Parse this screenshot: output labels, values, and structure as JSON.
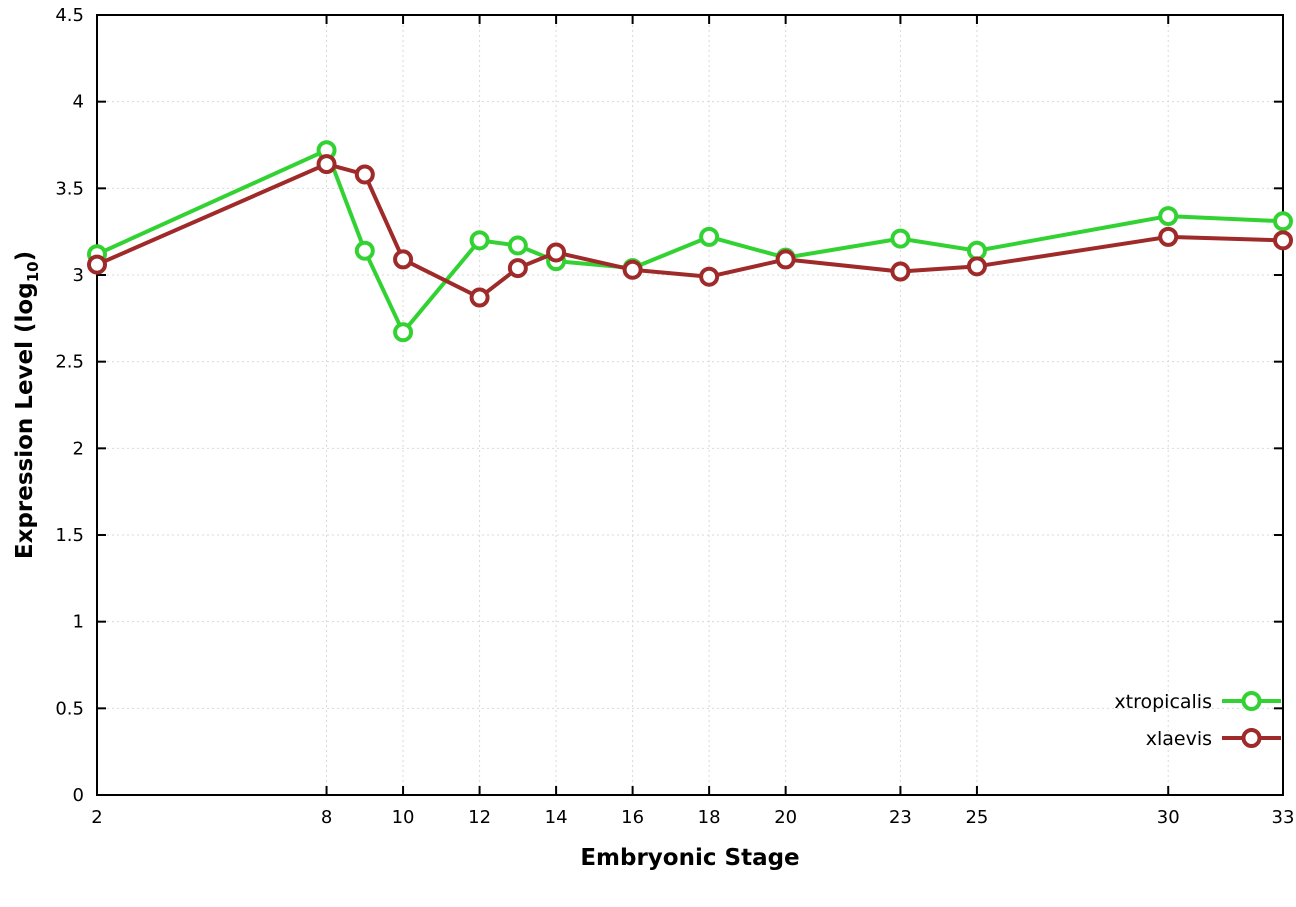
{
  "chart_data": {
    "type": "line",
    "title": "",
    "xlabel": "Embryonic Stage",
    "ylabel": "Expression Level (log10)",
    "ylabel_parts": {
      "main": "Expression Level (log",
      "sub": "10",
      "end": ")"
    },
    "x": [
      2,
      8,
      9,
      10,
      12,
      13,
      14,
      16,
      18,
      20,
      23,
      25,
      30,
      33
    ],
    "xlim": [
      2,
      33
    ],
    "ylim": [
      0,
      4.5
    ],
    "xtick_values": [
      2,
      8,
      10,
      12,
      14,
      16,
      18,
      20,
      23,
      25,
      30,
      33
    ],
    "xtick_labels": [
      "2",
      "8",
      "10",
      "12",
      "14",
      "16",
      "18",
      "20",
      "23",
      "25",
      "30",
      "33"
    ],
    "ytick_values": [
      0,
      0.5,
      1,
      1.5,
      2,
      2.5,
      3,
      3.5,
      4,
      4.5
    ],
    "ytick_labels": [
      "0",
      "0.5",
      "1",
      "1.5",
      "2",
      "2.5",
      "3",
      "3.5",
      "4",
      "4.5"
    ],
    "grid": true,
    "legend_position": "bottom-right",
    "series": [
      {
        "name": "xtropicalis",
        "color": "#33d233",
        "marker": "open-circle",
        "values": [
          3.12,
          3.72,
          3.14,
          2.67,
          3.2,
          3.17,
          3.08,
          3.04,
          3.22,
          3.1,
          3.21,
          3.14,
          3.34,
          3.31
        ]
      },
      {
        "name": "xlaevis",
        "color": "#9f2a2a",
        "marker": "open-circle",
        "values": [
          3.06,
          3.64,
          3.58,
          3.09,
          2.87,
          3.04,
          3.13,
          3.03,
          2.99,
          3.09,
          3.02,
          3.05,
          3.22,
          3.2
        ]
      }
    ],
    "colors": {
      "grid": "#d9d9d9",
      "axis": "#000000",
      "background": "#ffffff"
    }
  }
}
